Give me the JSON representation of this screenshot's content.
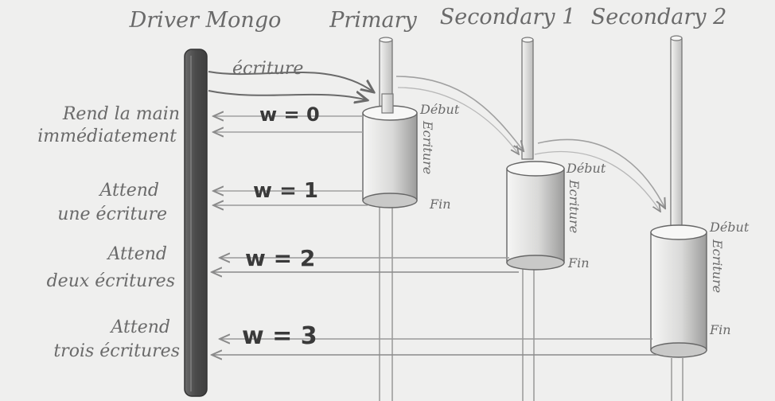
{
  "participants": {
    "driver": "Driver Mongo",
    "primary": "Primary",
    "secondary1": "Secondary 1",
    "secondary2": "Secondary 2"
  },
  "write_arrow_label": "écriture",
  "cylinder_labels": {
    "start": "Début",
    "write": "Ecriture",
    "end": "Fin"
  },
  "levels": [
    {
      "w": "w = 0",
      "desc_line1": "Rend la main",
      "desc_line2": "immédiatement"
    },
    {
      "w": "w = 1",
      "desc_line1": "Attend",
      "desc_line2": "une écriture"
    },
    {
      "w": "w = 2",
      "desc_line1": "Attend",
      "desc_line2": "deux écritures"
    },
    {
      "w": "w = 3",
      "desc_line1": "Attend",
      "desc_line2": "trois écritures"
    }
  ],
  "colors": {
    "background": "#efefee",
    "driver_bar": "#5a5a5a",
    "pencil": "#8a8a8a",
    "dark_text": "#3a3a3a"
  }
}
